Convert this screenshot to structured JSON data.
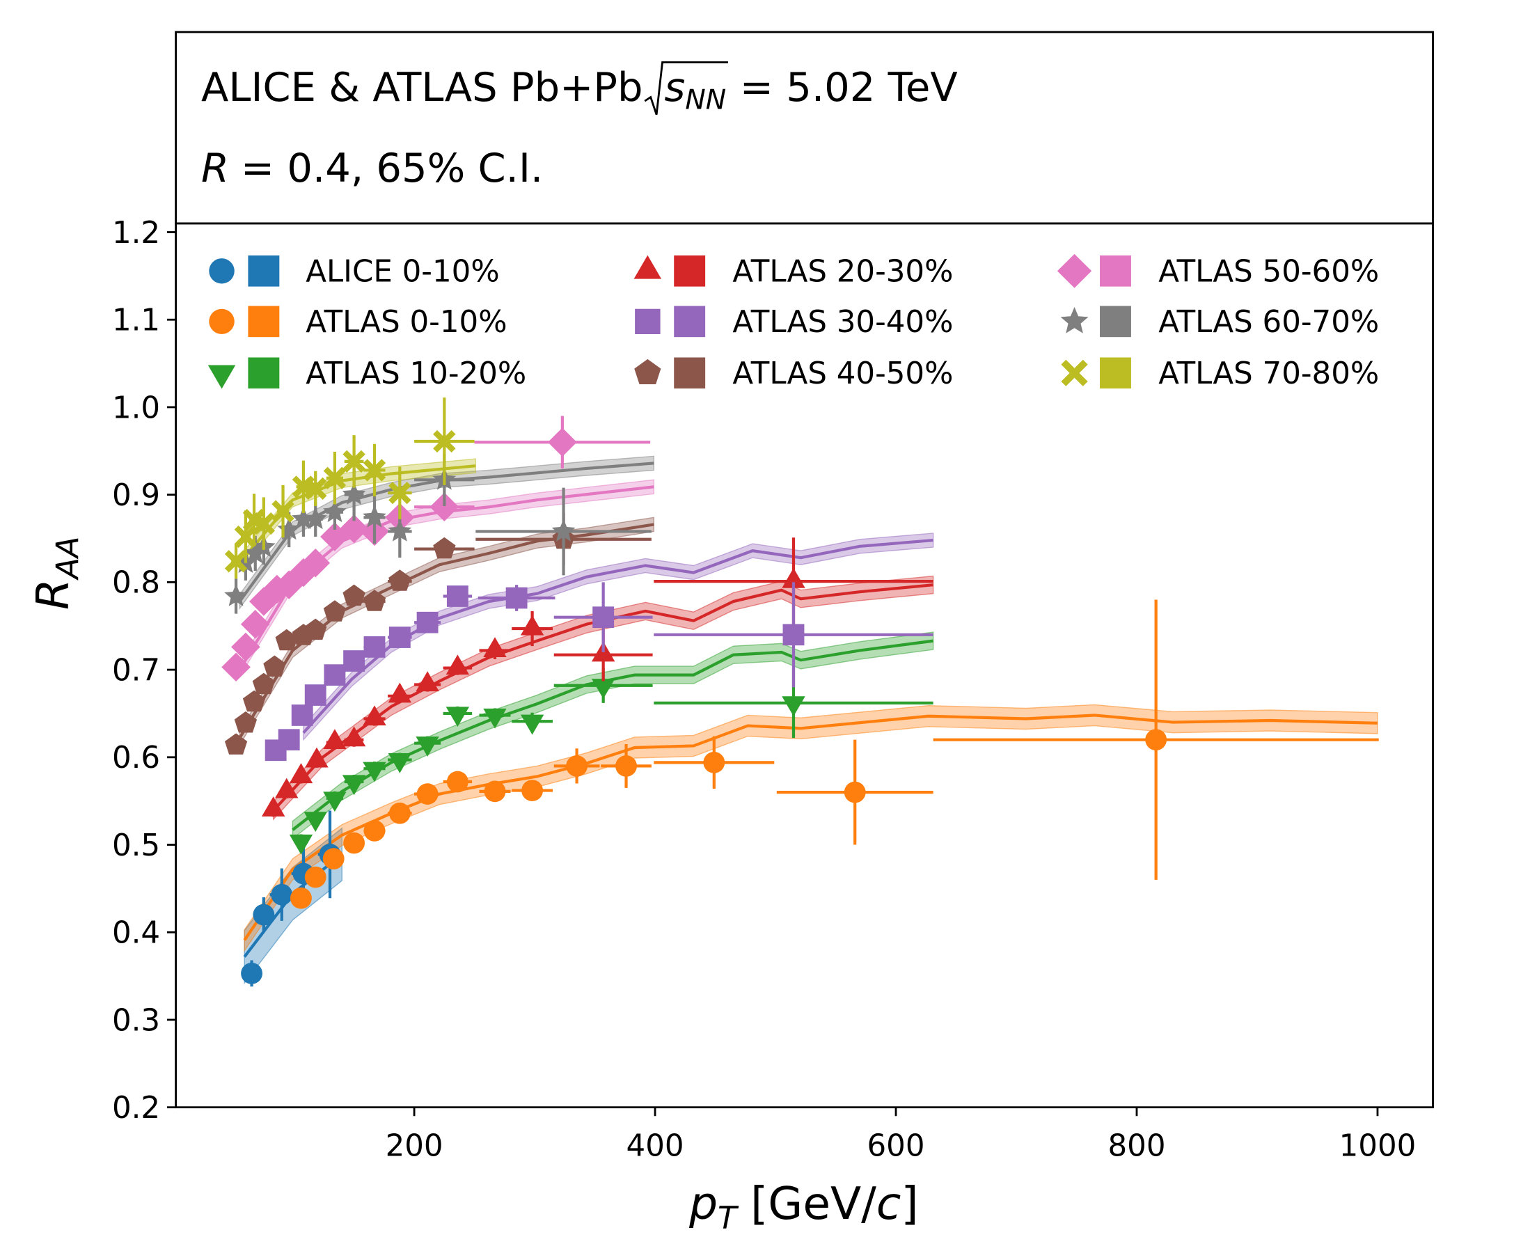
{
  "chart_data": {
    "type": "scatter",
    "title": {
      "before": "ALICE & ATLAS Pb+Pb",
      "root": "s",
      "sub": "NN",
      "after": "= 5.02 TeV"
    },
    "subtitle": {
      "var": "R",
      "rest": "= 0.4, 65% C.I."
    },
    "xlabel": {
      "main": "p",
      "sub": "T",
      "open": "[GeV/",
      "unit": "c",
      "close": "]"
    },
    "ylabel": {
      "main": "R",
      "sub": "AA"
    },
    "xlim": [
      2,
      1046
    ],
    "ylim": [
      0.2,
      1.21
    ],
    "xticks": [
      200,
      400,
      600,
      800,
      1000
    ],
    "yticks": [
      0.2,
      0.3,
      0.4,
      0.5,
      0.6,
      0.7,
      0.8,
      0.9,
      {
        "value": 1,
        "label": "1.0"
      },
      1.1,
      1.2
    ],
    "legend": "upper left",
    "series": [
      {
        "name": "ALICE 0-10%",
        "color": "#1f77b4",
        "marker": "circle",
        "x": [
          65,
          75,
          90,
          108,
          130
        ],
        "values": [
          0.353,
          0.42,
          0.443,
          0.467,
          0.489
        ],
        "errors": [
          0.015,
          0.02,
          0.03,
          0.035,
          0.05
        ],
        "xerr": [
          5,
          5,
          10,
          10,
          10
        ]
      },
      {
        "name": "ATLAS 0-10%",
        "color": "#ff7f0e",
        "marker": "circle",
        "x": [
          106,
          118,
          133,
          150,
          167,
          188,
          211,
          236,
          267,
          298,
          335,
          376,
          449,
          566,
          816
        ],
        "values": [
          0.439,
          0.463,
          0.484,
          0.502,
          0.516,
          0.536,
          0.558,
          0.572,
          0.561,
          0.562,
          0.59,
          0.59,
          0.594,
          0.56,
          0.62
        ],
        "errors": [
          0.008,
          0.008,
          0.008,
          0.008,
          0.008,
          0.008,
          0.008,
          0.008,
          0.008,
          0.01,
          0.02,
          0.025,
          0.03,
          0.06,
          0.16
        ],
        "xerr": [
          6,
          6,
          7,
          8,
          9,
          10,
          11,
          12,
          13,
          17,
          19,
          21,
          50,
          65,
          185
        ]
      },
      {
        "name": "ATLAS 10-20%",
        "color": "#2ca02c",
        "marker": "triangle-down",
        "x": [
          106,
          118,
          134,
          150,
          167,
          188,
          211,
          236,
          267,
          298,
          357,
          515
        ],
        "values": [
          0.504,
          0.53,
          0.553,
          0.572,
          0.587,
          0.597,
          0.616,
          0.65,
          0.648,
          0.641,
          0.682,
          0.662
        ],
        "errors": [
          0.008,
          0.008,
          0.008,
          0.008,
          0.008,
          0.008,
          0.008,
          0.008,
          0.008,
          0.01,
          0.02,
          0.04
        ],
        "xerr": [
          6,
          6,
          7,
          8,
          9,
          10,
          11,
          12,
          13,
          17,
          41,
          116
        ]
      },
      {
        "name": "ATLAS 20-30%",
        "color": "#d62728",
        "marker": "triangle-up",
        "x": [
          83,
          94,
          106,
          119,
          134,
          150,
          167,
          188,
          211,
          236,
          267,
          298,
          357,
          515
        ],
        "values": [
          0.54,
          0.561,
          0.578,
          0.596,
          0.617,
          0.62,
          0.644,
          0.67,
          0.683,
          0.702,
          0.722,
          0.747,
          0.717,
          0.801
        ],
        "errors": [
          0.008,
          0.008,
          0.008,
          0.008,
          0.008,
          0.008,
          0.008,
          0.008,
          0.008,
          0.008,
          0.01,
          0.02,
          0.03,
          0.05
        ],
        "xerr": [
          5,
          5,
          6,
          6,
          7,
          8,
          9,
          10,
          11,
          12,
          13,
          17,
          41,
          116
        ]
      },
      {
        "name": "ATLAS 30-40%",
        "color": "#9467bd",
        "marker": "square",
        "x": [
          85,
          96,
          107,
          118,
          134,
          150,
          167,
          188,
          211,
          236,
          285,
          357,
          515
        ],
        "values": [
          0.608,
          0.62,
          0.648,
          0.671,
          0.694,
          0.71,
          0.726,
          0.737,
          0.754,
          0.784,
          0.782,
          0.76,
          0.74
        ],
        "errors": [
          0.01,
          0.01,
          0.01,
          0.01,
          0.01,
          0.01,
          0.01,
          0.01,
          0.01,
          0.01,
          0.015,
          0.04,
          0.06
        ],
        "xerr": [
          5,
          5,
          6,
          6,
          7,
          8,
          9,
          10,
          11,
          12,
          32,
          41,
          116
        ]
      },
      {
        "name": "ATLAS 40-50%",
        "color": "#8c564b",
        "marker": "pentagon",
        "x": [
          52,
          60,
          67,
          75,
          84,
          94,
          108,
          118,
          134,
          150,
          167,
          188,
          225,
          324
        ],
        "values": [
          0.614,
          0.639,
          0.663,
          0.683,
          0.703,
          0.733,
          0.739,
          0.745,
          0.766,
          0.784,
          0.778,
          0.801,
          0.838,
          0.849
        ],
        "errors": [
          0.01,
          0.01,
          0.01,
          0.01,
          0.01,
          0.01,
          0.01,
          0.01,
          0.01,
          0.01,
          0.01,
          0.01,
          0.01,
          0.03
        ],
        "xerr": [
          4,
          4,
          4,
          4,
          5,
          5,
          6,
          6,
          7,
          8,
          9,
          10,
          25,
          73
        ]
      },
      {
        "name": "ATLAS 50-60%",
        "color": "#e377c2",
        "marker": "diamond",
        "x": [
          52,
          60,
          68,
          75,
          86,
          96,
          108,
          118,
          134,
          150,
          167,
          188,
          225,
          323
        ],
        "values": [
          0.703,
          0.726,
          0.752,
          0.778,
          0.792,
          0.797,
          0.811,
          0.822,
          0.852,
          0.861,
          0.858,
          0.874,
          0.886,
          0.96
        ],
        "errors": [
          0.01,
          0.01,
          0.01,
          0.01,
          0.01,
          0.01,
          0.01,
          0.01,
          0.01,
          0.01,
          0.01,
          0.01,
          0.01,
          0.03
        ],
        "xerr": [
          4,
          4,
          4,
          4,
          5,
          5,
          6,
          6,
          7,
          8,
          9,
          10,
          25,
          73
        ]
      },
      {
        "name": "ATLAS 60-70%",
        "color": "#7f7f7f",
        "marker": "star",
        "x": [
          52,
          60,
          68,
          75,
          96,
          108,
          118,
          134,
          150,
          167,
          188,
          225,
          324
        ],
        "values": [
          0.784,
          0.822,
          0.833,
          0.84,
          0.86,
          0.872,
          0.872,
          0.88,
          0.9,
          0.874,
          0.858,
          0.917,
          0.858
        ],
        "errors": [
          0.02,
          0.02,
          0.02,
          0.02,
          0.02,
          0.02,
          0.02,
          0.02,
          0.03,
          0.03,
          0.03,
          0.03,
          0.05
        ],
        "xerr": [
          4,
          4,
          4,
          4,
          5,
          6,
          6,
          7,
          8,
          9,
          10,
          25,
          73
        ]
      },
      {
        "name": "ATLAS 70-80%",
        "color": "#bcbd22",
        "marker": "x",
        "x": [
          52,
          60,
          67,
          75,
          91,
          108,
          118,
          134,
          150,
          167,
          188,
          225
        ],
        "values": [
          0.824,
          0.852,
          0.871,
          0.867,
          0.881,
          0.909,
          0.907,
          0.919,
          0.938,
          0.928,
          0.902,
          0.961
        ],
        "errors": [
          0.02,
          0.03,
          0.03,
          0.03,
          0.03,
          0.03,
          0.02,
          0.03,
          0.03,
          0.03,
          0.03,
          0.05
        ],
        "xerr": [
          4,
          4,
          4,
          4,
          5,
          6,
          6,
          7,
          8,
          9,
          10,
          25
        ]
      }
    ],
    "models": [
      {
        "color": "#1f77b4",
        "band": 0.03,
        "x": [
          59,
          99,
          140
        ],
        "values": [
          0.372,
          0.444,
          0.489
        ]
      },
      {
        "color": "#ff7f0e",
        "band": 0.012,
        "x": [
          59,
          99,
          140,
          181,
          221,
          262,
          302,
          343,
          383,
          432,
          477,
          521,
          627,
          708,
          765,
          830,
          911,
          1000
        ],
        "values": [
          0.391,
          0.472,
          0.511,
          0.536,
          0.558,
          0.569,
          0.578,
          0.593,
          0.611,
          0.613,
          0.636,
          0.633,
          0.647,
          0.644,
          0.648,
          0.64,
          0.642,
          0.639
        ]
      },
      {
        "color": "#2ca02c",
        "band": 0.01,
        "x": [
          99,
          140,
          181,
          221,
          262,
          302,
          343,
          383,
          432,
          465,
          505,
          521,
          570,
          631
        ],
        "values": [
          0.517,
          0.561,
          0.594,
          0.619,
          0.642,
          0.661,
          0.683,
          0.694,
          0.694,
          0.717,
          0.72,
          0.711,
          0.722,
          0.733
        ]
      },
      {
        "color": "#d62728",
        "band": 0.01,
        "x": [
          83,
          124,
          181,
          221,
          262,
          302,
          343,
          392,
          432,
          465,
          505,
          521,
          570,
          631
        ],
        "values": [
          0.539,
          0.6,
          0.658,
          0.687,
          0.714,
          0.733,
          0.752,
          0.767,
          0.756,
          0.778,
          0.791,
          0.781,
          0.789,
          0.797
        ]
      },
      {
        "color": "#9467bd",
        "band": 0.008,
        "x": [
          108,
          148,
          181,
          221,
          262,
          302,
          343,
          392,
          432,
          481,
          521,
          570,
          631
        ],
        "values": [
          0.628,
          0.689,
          0.728,
          0.759,
          0.778,
          0.787,
          0.806,
          0.819,
          0.811,
          0.836,
          0.828,
          0.841,
          0.848
        ]
      },
      {
        "color": "#8c564b",
        "band": 0.008,
        "x": [
          55,
          99,
          140,
          181,
          221,
          262,
          302,
          343,
          399
        ],
        "values": [
          0.622,
          0.722,
          0.767,
          0.794,
          0.82,
          0.833,
          0.847,
          0.854,
          0.866
        ]
      },
      {
        "color": "#e377c2",
        "band": 0.008,
        "x": [
          55,
          99,
          140,
          181,
          221,
          262,
          302,
          399
        ],
        "values": [
          0.7,
          0.8,
          0.847,
          0.87,
          0.88,
          0.886,
          0.894,
          0.909
        ]
      },
      {
        "color": "#7f7f7f",
        "band": 0.008,
        "x": [
          55,
          99,
          140,
          181,
          221,
          262,
          343,
          399
        ],
        "values": [
          0.778,
          0.861,
          0.891,
          0.906,
          0.916,
          0.92,
          0.93,
          0.936
        ]
      },
      {
        "color": "#bcbd22",
        "band": 0.008,
        "x": [
          55,
          99,
          140,
          181,
          251
        ],
        "values": [
          0.822,
          0.894,
          0.916,
          0.924,
          0.933
        ]
      }
    ]
  }
}
